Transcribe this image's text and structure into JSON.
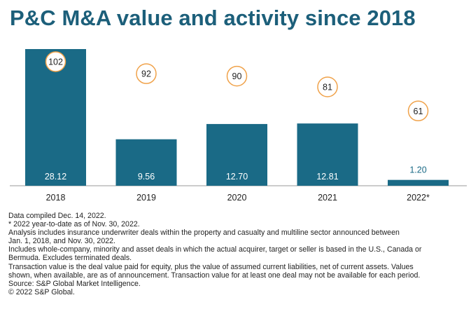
{
  "title": "P&C M&A value and activity since 2018",
  "chart_data": {
    "type": "bar",
    "categories": [
      "2018",
      "2019",
      "2020",
      "2021",
      "2022*"
    ],
    "series": [
      {
        "values": [
          28.12,
          9.56,
          12.7,
          12.81,
          1.2
        ]
      },
      {
        "values": [
          102,
          92,
          90,
          81,
          61
        ]
      }
    ],
    "value_labels": [
      "28.12",
      "9.56",
      "12.70",
      "12.81",
      "1.20"
    ],
    "count_labels": [
      "102",
      "92",
      "90",
      "81",
      "61"
    ],
    "ylim": [
      0,
      28.12
    ],
    "count_ylim": [
      60,
      102
    ],
    "grid": false,
    "colors": {
      "bar": "#1a6a86",
      "bubble_border": "#f0a24a",
      "axis": "#999999",
      "title": "#1c5f7a",
      "outside_label": "#1a6a86"
    }
  },
  "notes": [
    "Data compiled Dec. 14, 2022.",
    "* 2022 year-to-date as of Nov. 30, 2022.",
    "Analysis includes insurance underwriter deals within the property and casualty and multiline sector announced between",
    "Jan. 1, 2018, and Nov. 30, 2022.",
    "Includes whole-company, minority and asset deals in which the actual acquirer, target or seller is based in the U.S., Canada or",
    "Bermuda. Excludes terminated deals.",
    "Transaction value is the deal value paid for equity, plus the value of assumed current liabilities, net of current assets. Values",
    "shown, when available, are as of announcement. Transaction value for at least one deal may not be available for each period.",
    "Source: S&P Global Market Intelligence.",
    "© 2022 S&P Global."
  ]
}
